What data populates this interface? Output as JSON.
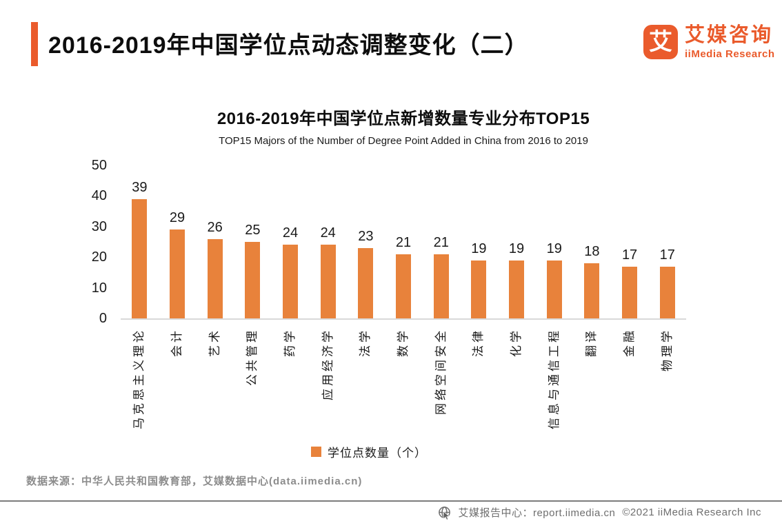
{
  "header": {
    "title": "2016-2019年中国学位点动态调整变化（二）",
    "logo": {
      "icon_glyph": "艾",
      "name_cn": "艾媒咨询",
      "name_en": "iiMedia Research"
    }
  },
  "chart_data": {
    "type": "bar",
    "title": "2016-2019年中国学位点新增数量专业分布TOP15",
    "subtitle": "TOP15 Majors of the Number of Degree Point Added in China from 2016 to 2019",
    "categories": [
      "马克思主义理论",
      "会计",
      "艺术",
      "公共管理",
      "药学",
      "应用经济学",
      "法学",
      "数学",
      "网络空间安全",
      "法律",
      "化学",
      "信息与通信工程",
      "翻译",
      "金融",
      "物理学"
    ],
    "values": [
      39,
      29,
      26,
      25,
      24,
      24,
      23,
      21,
      21,
      19,
      19,
      19,
      18,
      17,
      17
    ],
    "ylim": [
      0,
      50
    ],
    "yticks": [
      0,
      10,
      20,
      30,
      40,
      50
    ],
    "legend_label": "学位点数量（个）",
    "grid": false,
    "value_labels": true,
    "bar_color": "#E8823B"
  },
  "footer": {
    "source": "数据来源：中华人民共和国教育部，艾媒数据中心(data.iimedia.cn)",
    "report_center": "艾媒报告中心：report.iimedia.cn",
    "copyright": "©2021  iiMedia Research Inc"
  },
  "colors": {
    "brand": "#EA5B2C",
    "bar": "#E8823B"
  }
}
